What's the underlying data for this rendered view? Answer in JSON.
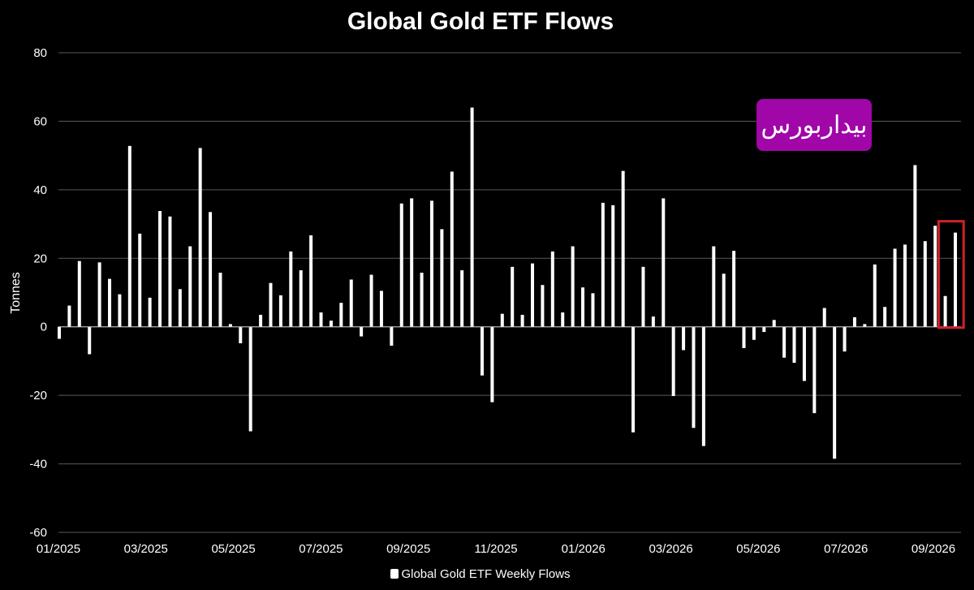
{
  "watermark": "بیداربورس",
  "chart_data": {
    "type": "bar",
    "title": "Global Gold ETF Flows",
    "xlabel": "",
    "ylabel": "Tonnes",
    "ylim": [
      -60,
      80
    ],
    "yticks": [
      80,
      60,
      40,
      20,
      0,
      -20,
      -40,
      -60
    ],
    "grid": true,
    "bar_color": "#ffffff",
    "background": "#000000",
    "highlight_color": "#d0202a",
    "legend_position": "bottom",
    "x_tick_labels": [
      "01/2025",
      "03/2025",
      "05/2025",
      "07/2025",
      "09/2025",
      "11/2025",
      "01/2026",
      "03/2026",
      "05/2026",
      "07/2026",
      "09/2026"
    ],
    "series": [
      {
        "name": "Global Gold ETF Weekly Flows",
        "values": [
          -3.5,
          6.2,
          19.2,
          -8,
          18.8,
          14,
          9.5,
          52.8,
          27.2,
          8.5,
          33.8,
          32.2,
          11,
          23.5,
          52.2,
          33.5,
          15.8,
          0.8,
          -4.8,
          -30.5,
          3.5,
          12.8,
          9.2,
          22,
          16.5,
          26.7,
          4.2,
          1.8,
          7,
          13.8,
          -2.8,
          15.2,
          10.5,
          -5.5,
          36,
          37.5,
          15.8,
          36.8,
          28.5,
          45.3,
          16.5,
          64,
          -14.2,
          -22,
          3.8,
          17.5,
          3.5,
          18.5,
          12.2,
          22,
          4.2,
          23.5,
          11.5,
          9.8,
          36.2,
          35.5,
          45.5,
          -30.8,
          17.5,
          3,
          37.5,
          -20.2,
          -6.8,
          -29.5,
          -34.8,
          23.5,
          15.5,
          22.2,
          -6.2,
          -3.8,
          -1.5,
          2,
          -9,
          -10.5,
          -15.8,
          -25.2,
          5.5,
          -38.5,
          -7.2,
          2.8,
          0.8,
          18.2,
          5.8,
          22.8,
          24,
          47.2,
          25,
          29.5,
          9,
          27.5
        ]
      }
    ],
    "highlight_last": 2
  }
}
